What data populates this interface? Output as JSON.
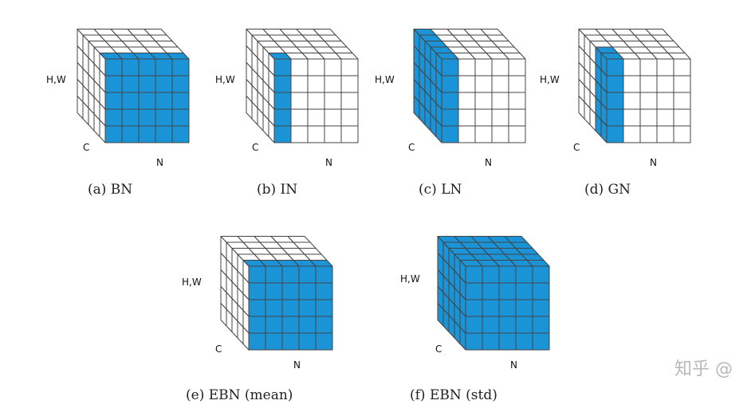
{
  "figure": {
    "fill_color": "#1a93d7",
    "edge_color": "#444444",
    "axis_labels": {
      "hw": "H,W",
      "c": "C",
      "n": "N"
    },
    "panels": [
      {
        "id": "bn",
        "caption": "(a) BN",
        "highlight": "batch-norm: all N slices of a single channel"
      },
      {
        "id": "in",
        "caption": "(b) IN",
        "highlight": "instance-norm: single channel of a single sample"
      },
      {
        "id": "ln",
        "caption": "(c) LN",
        "highlight": "layer-norm: all channels of a single sample"
      },
      {
        "id": "gn",
        "caption": "(d) GN",
        "highlight": "group-norm: group of channels of a single sample"
      },
      {
        "id": "ebn-mean",
        "caption": "(e) EBN (mean)",
        "highlight": "same as BN"
      },
      {
        "id": "ebn-std",
        "caption": "(f) EBN (std)",
        "highlight": "entire cube"
      }
    ]
  },
  "watermark": "知乎 @"
}
